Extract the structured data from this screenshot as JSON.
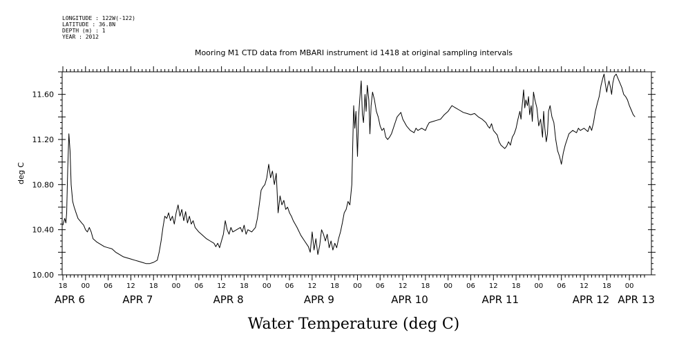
{
  "meta_lines": [
    "LONGITUDE : 122W(-122)",
    "LATITUDE : 36.8N",
    "DEPTH (m) : 1",
    "YEAR : 2012"
  ],
  "chart_data": {
    "type": "line",
    "title": "Mooring M1 CTD data from MBARI instrument id 1418 at original sampling intervals",
    "xlabel": "Water Temperature (deg C)",
    "ylabel": "deg C",
    "ylim": [
      10.0,
      11.8
    ],
    "yticks": [
      10.0,
      10.4,
      10.8,
      11.2,
      11.6
    ],
    "ytick_labels": [
      "10.00",
      "10.40",
      "10.80",
      "11.20",
      "11.60"
    ],
    "x_unit": "hours since 2012-04-05 18:00",
    "xlim": [
      0,
      154
    ],
    "hour_ticks": [
      {
        "h": 0,
        "label": "18"
      },
      {
        "h": 6,
        "label": "00"
      },
      {
        "h": 12,
        "label": "06"
      },
      {
        "h": 18,
        "label": "12"
      },
      {
        "h": 24,
        "label": "18"
      },
      {
        "h": 30,
        "label": "00"
      },
      {
        "h": 36,
        "label": "06"
      },
      {
        "h": 42,
        "label": "12"
      },
      {
        "h": 48,
        "label": "18"
      },
      {
        "h": 54,
        "label": "00"
      },
      {
        "h": 60,
        "label": "06"
      },
      {
        "h": 66,
        "label": "12"
      },
      {
        "h": 72,
        "label": "18"
      },
      {
        "h": 78,
        "label": "00"
      },
      {
        "h": 84,
        "label": "06"
      },
      {
        "h": 90,
        "label": "12"
      },
      {
        "h": 96,
        "label": "18"
      },
      {
        "h": 102,
        "label": "00"
      },
      {
        "h": 108,
        "label": "06"
      },
      {
        "h": 114,
        "label": "12"
      },
      {
        "h": 120,
        "label": "18"
      },
      {
        "h": 126,
        "label": "00"
      },
      {
        "h": 132,
        "label": "06"
      },
      {
        "h": 138,
        "label": "12"
      },
      {
        "h": 144,
        "label": "18"
      },
      {
        "h": 150,
        "label": "00"
      }
    ],
    "day_labels": [
      {
        "h": 0,
        "label": "APR  6"
      },
      {
        "h": 18,
        "label": "APR  7"
      },
      {
        "h": 42,
        "label": "APR  8"
      },
      {
        "h": 66,
        "label": "APR  9"
      },
      {
        "h": 90,
        "label": "APR 10"
      },
      {
        "h": 114,
        "label": "APR 11"
      },
      {
        "h": 138,
        "label": "APR 12"
      },
      {
        "h": 150,
        "label": "APR 13"
      }
    ],
    "series": [
      {
        "color": "#000000",
        "points": [
          [
            0.0,
            10.44
          ],
          [
            0.5,
            10.5
          ],
          [
            0.8,
            10.46
          ],
          [
            1.0,
            10.55
          ],
          [
            1.3,
            10.95
          ],
          [
            1.6,
            11.25
          ],
          [
            1.9,
            11.1
          ],
          [
            2.2,
            10.8
          ],
          [
            2.6,
            10.65
          ],
          [
            3.0,
            10.6
          ],
          [
            3.5,
            10.55
          ],
          [
            4.0,
            10.5
          ],
          [
            4.5,
            10.48
          ],
          [
            5.0,
            10.46
          ],
          [
            5.5,
            10.44
          ],
          [
            6.0,
            10.4
          ],
          [
            6.5,
            10.38
          ],
          [
            7.0,
            10.42
          ],
          [
            7.5,
            10.38
          ],
          [
            8.0,
            10.32
          ],
          [
            9.0,
            10.29
          ],
          [
            10.0,
            10.27
          ],
          [
            11.0,
            10.25
          ],
          [
            12.0,
            10.24
          ],
          [
            13.0,
            10.23
          ],
          [
            14.0,
            10.2
          ],
          [
            15.0,
            10.18
          ],
          [
            16.0,
            10.16
          ],
          [
            17.0,
            10.15
          ],
          [
            18.0,
            10.14
          ],
          [
            19.0,
            10.13
          ],
          [
            20.0,
            10.12
          ],
          [
            21.0,
            10.11
          ],
          [
            22.0,
            10.1
          ],
          [
            23.0,
            10.1
          ],
          [
            24.0,
            10.11
          ],
          [
            25.0,
            10.13
          ],
          [
            25.5,
            10.2
          ],
          [
            26.0,
            10.3
          ],
          [
            26.5,
            10.42
          ],
          [
            27.0,
            10.52
          ],
          [
            27.5,
            10.5
          ],
          [
            28.0,
            10.55
          ],
          [
            28.5,
            10.48
          ],
          [
            29.0,
            10.52
          ],
          [
            29.5,
            10.45
          ],
          [
            30.0,
            10.55
          ],
          [
            30.5,
            10.62
          ],
          [
            31.0,
            10.52
          ],
          [
            31.5,
            10.58
          ],
          [
            32.0,
            10.48
          ],
          [
            32.5,
            10.56
          ],
          [
            33.0,
            10.46
          ],
          [
            33.5,
            10.52
          ],
          [
            34.0,
            10.45
          ],
          [
            34.5,
            10.48
          ],
          [
            35.0,
            10.42
          ],
          [
            36.0,
            10.38
          ],
          [
            37.0,
            10.35
          ],
          [
            38.0,
            10.32
          ],
          [
            39.0,
            10.3
          ],
          [
            40.0,
            10.28
          ],
          [
            40.5,
            10.25
          ],
          [
            41.0,
            10.28
          ],
          [
            41.5,
            10.24
          ],
          [
            42.0,
            10.3
          ],
          [
            42.5,
            10.36
          ],
          [
            43.0,
            10.48
          ],
          [
            43.5,
            10.4
          ],
          [
            44.0,
            10.36
          ],
          [
            44.5,
            10.42
          ],
          [
            45.0,
            10.38
          ],
          [
            46.0,
            10.4
          ],
          [
            47.0,
            10.42
          ],
          [
            47.5,
            10.38
          ],
          [
            48.0,
            10.44
          ],
          [
            48.5,
            10.36
          ],
          [
            49.0,
            10.4
          ],
          [
            50.0,
            10.38
          ],
          [
            51.0,
            10.42
          ],
          [
            51.5,
            10.5
          ],
          [
            52.0,
            10.62
          ],
          [
            52.5,
            10.75
          ],
          [
            53.0,
            10.78
          ],
          [
            53.5,
            10.8
          ],
          [
            54.0,
            10.86
          ],
          [
            54.5,
            10.98
          ],
          [
            55.0,
            10.86
          ],
          [
            55.5,
            10.92
          ],
          [
            56.0,
            10.8
          ],
          [
            56.5,
            10.9
          ],
          [
            57.0,
            10.55
          ],
          [
            57.5,
            10.7
          ],
          [
            58.0,
            10.62
          ],
          [
            58.5,
            10.66
          ],
          [
            59.0,
            10.58
          ],
          [
            59.5,
            10.6
          ],
          [
            60.0,
            10.55
          ],
          [
            60.5,
            10.52
          ],
          [
            61.0,
            10.48
          ],
          [
            62.0,
            10.42
          ],
          [
            63.0,
            10.35
          ],
          [
            64.0,
            10.3
          ],
          [
            65.0,
            10.25
          ],
          [
            65.5,
            10.2
          ],
          [
            66.0,
            10.38
          ],
          [
            66.5,
            10.22
          ],
          [
            67.0,
            10.32
          ],
          [
            67.5,
            10.18
          ],
          [
            68.0,
            10.26
          ],
          [
            68.5,
            10.4
          ],
          [
            69.0,
            10.36
          ],
          [
            69.5,
            10.3
          ],
          [
            70.0,
            10.36
          ],
          [
            70.5,
            10.24
          ],
          [
            71.0,
            10.3
          ],
          [
            71.5,
            10.22
          ],
          [
            72.0,
            10.28
          ],
          [
            72.5,
            10.24
          ],
          [
            73.0,
            10.32
          ],
          [
            73.5,
            10.38
          ],
          [
            74.0,
            10.46
          ],
          [
            74.5,
            10.55
          ],
          [
            75.0,
            10.58
          ],
          [
            75.5,
            10.65
          ],
          [
            76.0,
            10.62
          ],
          [
            76.5,
            10.8
          ],
          [
            76.8,
            11.22
          ],
          [
            77.0,
            11.5
          ],
          [
            77.3,
            11.3
          ],
          [
            77.6,
            11.45
          ],
          [
            78.0,
            11.05
          ],
          [
            78.3,
            11.4
          ],
          [
            78.6,
            11.55
          ],
          [
            79.0,
            11.72
          ],
          [
            79.3,
            11.42
          ],
          [
            79.6,
            11.35
          ],
          [
            80.0,
            11.6
          ],
          [
            80.3,
            11.45
          ],
          [
            80.6,
            11.68
          ],
          [
            81.0,
            11.55
          ],
          [
            81.3,
            11.25
          ],
          [
            81.6,
            11.5
          ],
          [
            82.0,
            11.62
          ],
          [
            82.5,
            11.55
          ],
          [
            83.0,
            11.45
          ],
          [
            83.5,
            11.4
          ],
          [
            84.0,
            11.32
          ],
          [
            84.5,
            11.28
          ],
          [
            85.0,
            11.3
          ],
          [
            85.5,
            11.22
          ],
          [
            86.0,
            11.2
          ],
          [
            86.5,
            11.22
          ],
          [
            87.0,
            11.25
          ],
          [
            87.5,
            11.3
          ],
          [
            88.0,
            11.35
          ],
          [
            88.5,
            11.4
          ],
          [
            89.0,
            11.42
          ],
          [
            89.5,
            11.44
          ],
          [
            90.0,
            11.38
          ],
          [
            90.5,
            11.35
          ],
          [
            91.0,
            11.32
          ],
          [
            92.0,
            11.28
          ],
          [
            93.0,
            11.26
          ],
          [
            93.5,
            11.3
          ],
          [
            94.0,
            11.28
          ],
          [
            95.0,
            11.3
          ],
          [
            96.0,
            11.28
          ],
          [
            96.5,
            11.32
          ],
          [
            97.0,
            11.35
          ],
          [
            98.0,
            11.36
          ],
          [
            99.0,
            11.37
          ],
          [
            100.0,
            11.38
          ],
          [
            101.0,
            11.42
          ],
          [
            102.0,
            11.45
          ],
          [
            103.0,
            11.5
          ],
          [
            104.0,
            11.48
          ],
          [
            105.0,
            11.46
          ],
          [
            106.0,
            11.44
          ],
          [
            107.0,
            11.43
          ],
          [
            108.0,
            11.42
          ],
          [
            109.0,
            11.43
          ],
          [
            110.0,
            11.4
          ],
          [
            111.0,
            11.38
          ],
          [
            112.0,
            11.35
          ],
          [
            112.5,
            11.32
          ],
          [
            113.0,
            11.3
          ],
          [
            113.5,
            11.34
          ],
          [
            114.0,
            11.28
          ],
          [
            115.0,
            11.24
          ],
          [
            115.5,
            11.18
          ],
          [
            116.0,
            11.15
          ],
          [
            117.0,
            11.12
          ],
          [
            117.5,
            11.14
          ],
          [
            118.0,
            11.18
          ],
          [
            118.5,
            11.15
          ],
          [
            119.0,
            11.22
          ],
          [
            119.5,
            11.25
          ],
          [
            120.0,
            11.3
          ],
          [
            120.5,
            11.38
          ],
          [
            121.0,
            11.45
          ],
          [
            121.3,
            11.38
          ],
          [
            121.6,
            11.5
          ],
          [
            122.0,
            11.64
          ],
          [
            122.3,
            11.48
          ],
          [
            122.6,
            11.55
          ],
          [
            123.0,
            11.5
          ],
          [
            123.3,
            11.58
          ],
          [
            123.6,
            11.42
          ],
          [
            124.0,
            11.5
          ],
          [
            124.3,
            11.36
          ],
          [
            124.6,
            11.62
          ],
          [
            125.0,
            11.55
          ],
          [
            125.5,
            11.48
          ],
          [
            126.0,
            11.32
          ],
          [
            126.5,
            11.38
          ],
          [
            127.0,
            11.22
          ],
          [
            127.3,
            11.45
          ],
          [
            127.6,
            11.3
          ],
          [
            128.0,
            11.18
          ],
          [
            128.3,
            11.25
          ],
          [
            128.6,
            11.45
          ],
          [
            129.0,
            11.5
          ],
          [
            129.5,
            11.4
          ],
          [
            130.0,
            11.35
          ],
          [
            130.5,
            11.2
          ],
          [
            131.0,
            11.1
          ],
          [
            131.5,
            11.05
          ],
          [
            132.0,
            10.98
          ],
          [
            132.5,
            11.08
          ],
          [
            133.0,
            11.15
          ],
          [
            133.5,
            11.2
          ],
          [
            134.0,
            11.25
          ],
          [
            135.0,
            11.28
          ],
          [
            136.0,
            11.26
          ],
          [
            136.5,
            11.3
          ],
          [
            137.0,
            11.28
          ],
          [
            138.0,
            11.3
          ],
          [
            139.0,
            11.27
          ],
          [
            139.5,
            11.32
          ],
          [
            140.0,
            11.28
          ],
          [
            140.5,
            11.35
          ],
          [
            141.0,
            11.45
          ],
          [
            141.5,
            11.52
          ],
          [
            142.0,
            11.58
          ],
          [
            142.5,
            11.68
          ],
          [
            143.0,
            11.75
          ],
          [
            143.3,
            11.78
          ],
          [
            143.6,
            11.7
          ],
          [
            144.0,
            11.62
          ],
          [
            144.3,
            11.68
          ],
          [
            144.6,
            11.72
          ],
          [
            145.0,
            11.66
          ],
          [
            145.3,
            11.6
          ],
          [
            145.6,
            11.7
          ],
          [
            146.0,
            11.76
          ],
          [
            146.5,
            11.78
          ],
          [
            147.0,
            11.74
          ],
          [
            147.5,
            11.7
          ],
          [
            148.0,
            11.66
          ],
          [
            148.5,
            11.6
          ],
          [
            149.0,
            11.58
          ],
          [
            149.5,
            11.55
          ],
          [
            150.0,
            11.5
          ],
          [
            150.5,
            11.46
          ],
          [
            151.0,
            11.42
          ],
          [
            151.5,
            11.4
          ]
        ]
      }
    ],
    "grid": false
  }
}
